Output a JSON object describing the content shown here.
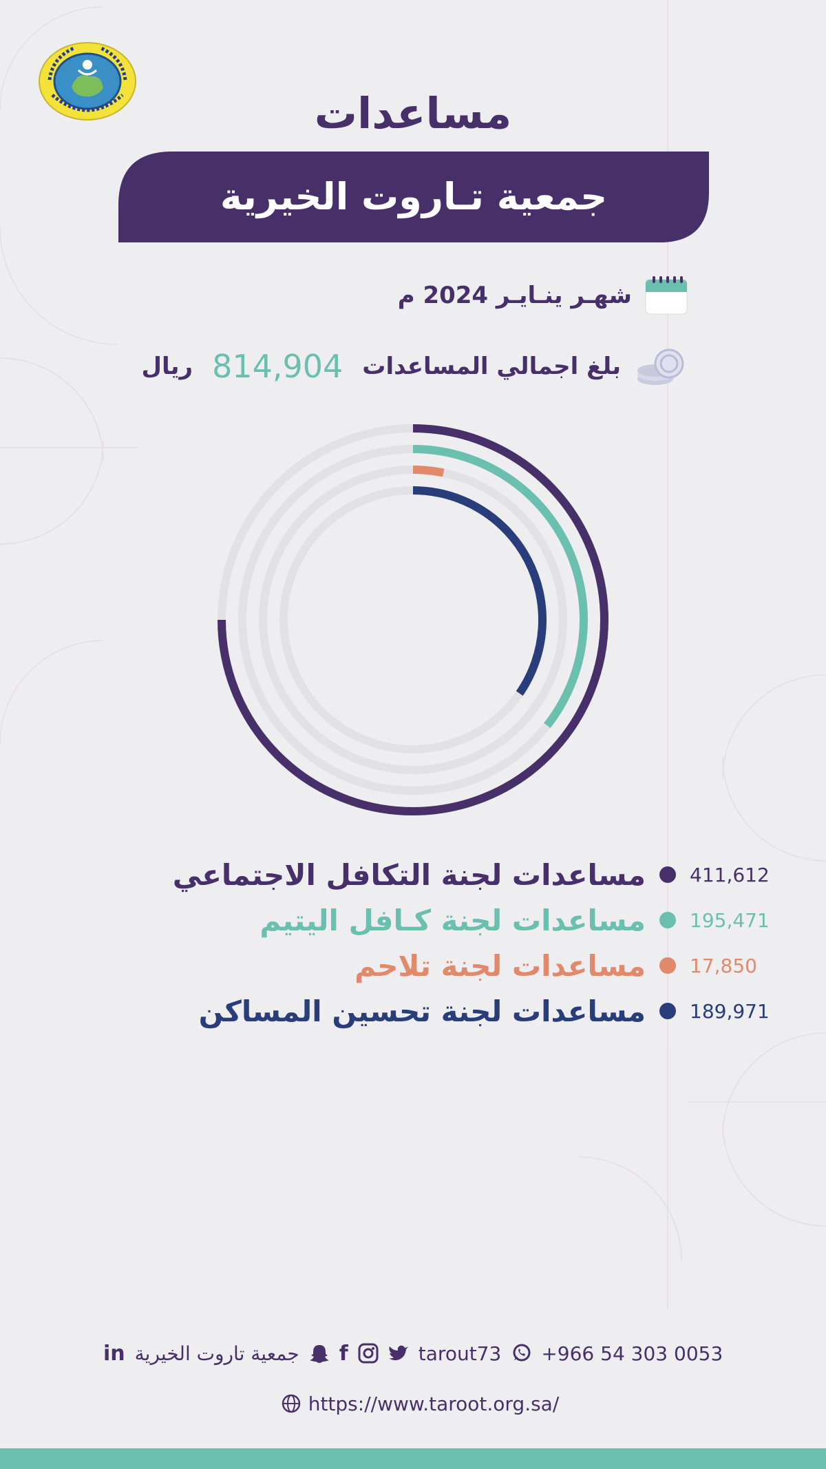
{
  "title": "مساعدات",
  "banner": "جمعية تـاروت الخيرية",
  "month_line": "شهـر ينـايـر 2024 م",
  "total": {
    "prefix": "بلغ اجمالي المساعدات",
    "value": "814,904",
    "unit": "ريال"
  },
  "colors": {
    "purple": "#47306a",
    "teal": "#6bbfaf",
    "orange": "#e0896b",
    "navy": "#283d7a",
    "track": "#e2e2e5",
    "background": "#eeeef0"
  },
  "chart_data": {
    "type": "radial_bar",
    "max": 411612,
    "series": [
      {
        "name": "مساعدات لجنة التكافل الاجتماعي",
        "value": 411612,
        "label": "411,612",
        "color": "#47306a"
      },
      {
        "name": "مساعدات لجنة كـافل اليتيم",
        "value": 195471,
        "label": "195,471",
        "color": "#6bbfaf"
      },
      {
        "name": "مساعدات لجنة تلاحم",
        "value": 17850,
        "label": "17,850",
        "color": "#e0896b"
      },
      {
        "name": "مساعدات لجنة تحسين المساكن",
        "value": 189971,
        "label": "189,971",
        "color": "#283d7a"
      }
    ]
  },
  "footer": {
    "org_name": "جمعية تاروت الخيرية",
    "handle": "tarout73",
    "phone": "+966 54 303 0053",
    "website": "https://www.taroot.org.sa/"
  },
  "icons": [
    "logo-seal",
    "calendar-icon",
    "coins-icon",
    "linkedin-icon",
    "snapchat-icon",
    "facebook-icon",
    "instagram-icon",
    "twitter-icon",
    "whatsapp-icon",
    "globe-icon"
  ]
}
